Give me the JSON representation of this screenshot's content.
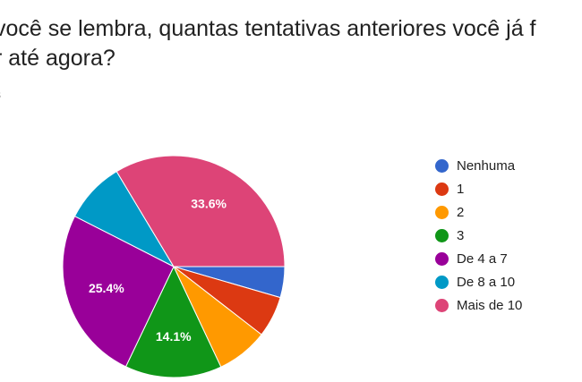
{
  "question": {
    "title": "você se lembra, quantas tentativas anteriores você já f\nr até agora?",
    "subtitle": "s"
  },
  "chart_data": {
    "type": "pie",
    "categories": [
      "Nenhuma",
      "1",
      "2",
      "3",
      "De 4 a 7",
      "De 8 a 10",
      "Mais de 10"
    ],
    "values": [
      4.5,
      6.0,
      7.5,
      14.1,
      25.4,
      8.9,
      33.6
    ],
    "unit": "%",
    "data_labels": [
      "",
      "",
      "",
      "14.1%",
      "25.4%",
      "",
      "33.6%"
    ],
    "colors": [
      "#3366cc",
      "#dc3912",
      "#ff9900",
      "#109618",
      "#990099",
      "#0099c6",
      "#dd4477"
    ],
    "legend_position": "right",
    "start_angle_deg": 90,
    "direction": "clockwise"
  }
}
